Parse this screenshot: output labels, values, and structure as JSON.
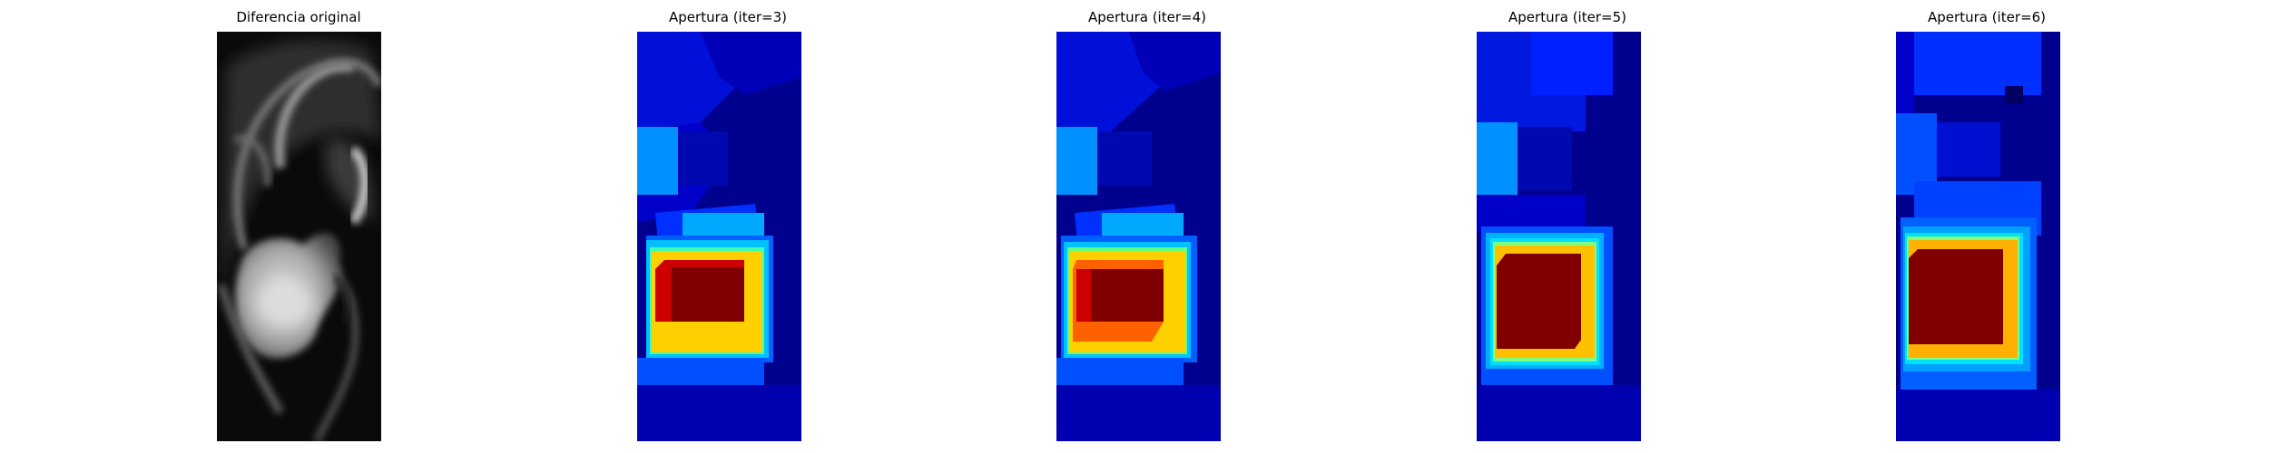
{
  "figure": {
    "panels": [
      {
        "title": "Diferencia original",
        "kind": "grayscale-difference",
        "colormap": "gray"
      },
      {
        "title": "Apertura (iter=3)",
        "kind": "opening",
        "iterations": 3,
        "colormap": "jet"
      },
      {
        "title": "Apertura (iter=4)",
        "kind": "opening",
        "iterations": 4,
        "colormap": "jet"
      },
      {
        "title": "Apertura (iter=5)",
        "kind": "opening",
        "iterations": 5,
        "colormap": "jet"
      },
      {
        "title": "Apertura (iter=6)",
        "kind": "opening",
        "iterations": 6,
        "colormap": "jet"
      }
    ]
  },
  "colors": {
    "jet_background": "#00008f",
    "jet_dark_blue": "#0000b8",
    "jet_blue": "#0020ff",
    "jet_light_blue": "#0090ff",
    "jet_cyan": "#00e0ff",
    "jet_green": "#40ff80",
    "jet_yellow": "#ffd000",
    "jet_orange": "#ff6000",
    "jet_dark_red": "#800000",
    "jet_red": "#cc0000"
  }
}
